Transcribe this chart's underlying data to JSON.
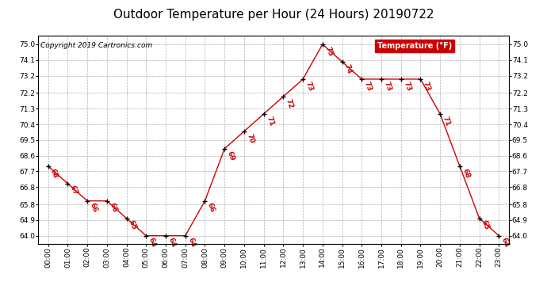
{
  "title": "Outdoor Temperature per Hour (24 Hours) 20190722",
  "copyright": "Copyright 2019 Cartronics.com",
  "legend_label": "Temperature (°F)",
  "hours": [
    0,
    1,
    2,
    3,
    4,
    5,
    6,
    7,
    8,
    9,
    10,
    11,
    12,
    13,
    14,
    15,
    16,
    17,
    18,
    19,
    20,
    21,
    22,
    23
  ],
  "temps": [
    68,
    67,
    66,
    66,
    65,
    64,
    64,
    64,
    66,
    69,
    70,
    71,
    72,
    73,
    75,
    74,
    73,
    73,
    73,
    73,
    71,
    68,
    65,
    64
  ],
  "x_labels": [
    "00:00",
    "01:00",
    "02:00",
    "03:00",
    "04:00",
    "05:00",
    "06:00",
    "07:00",
    "08:00",
    "09:00",
    "10:00",
    "11:00",
    "12:00",
    "13:00",
    "14:00",
    "15:00",
    "16:00",
    "17:00",
    "18:00",
    "19:00",
    "20:00",
    "21:00",
    "22:00",
    "23:00"
  ],
  "y_ticks": [
    64.0,
    64.9,
    65.8,
    66.8,
    67.7,
    68.6,
    69.5,
    70.4,
    71.3,
    72.2,
    73.2,
    74.1,
    75.0
  ],
  "line_color": "#cc0000",
  "marker_color": "#000000",
  "label_color": "#cc0000",
  "background_color": "#ffffff",
  "grid_color": "#b0b0b0",
  "legend_bg": "#cc0000",
  "legend_text_color": "#ffffff",
  "title_fontsize": 11,
  "label_fontsize": 6.5,
  "tick_fontsize": 6.5,
  "copyright_fontsize": 6.5,
  "ylim_min": 63.55,
  "ylim_max": 75.5
}
